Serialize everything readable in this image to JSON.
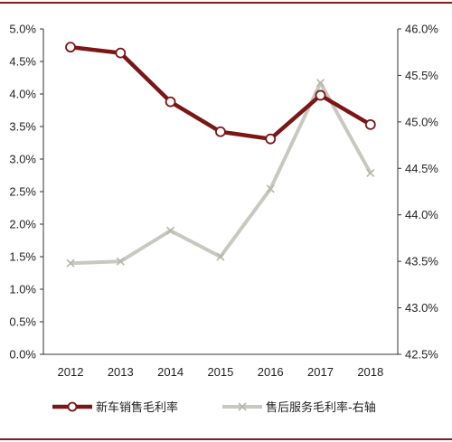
{
  "chart_data": {
    "type": "line",
    "categories": [
      "2012",
      "2013",
      "2014",
      "2015",
      "2016",
      "2017",
      "2018"
    ],
    "y_left": {
      "range": [
        0,
        5
      ],
      "ticks": [
        0,
        0.5,
        1,
        1.5,
        2,
        2.5,
        3,
        3.5,
        4,
        4.5,
        5
      ],
      "tick_labels": [
        "0.0%",
        "0.5%",
        "1.0%",
        "1.5%",
        "2.0%",
        "2.5%",
        "3.0%",
        "3.5%",
        "4.0%",
        "4.5%",
        "5.0%"
      ]
    },
    "y_right": {
      "range": [
        42.5,
        46
      ],
      "ticks": [
        42.5,
        43,
        43.5,
        44,
        44.5,
        45,
        45.5,
        46
      ],
      "tick_labels": [
        "42.5%",
        "43.0%",
        "43.5%",
        "44.0%",
        "44.5%",
        "45.0%",
        "45.5%",
        "46.0%"
      ]
    },
    "series": [
      {
        "name": "新车销售毛利率",
        "axis": "left",
        "values": [
          4.72,
          4.63,
          3.88,
          3.42,
          3.31,
          3.98,
          3.53
        ],
        "color": "#7b1616",
        "marker": "circle"
      },
      {
        "name": "售后服务毛利率-右轴",
        "axis": "right",
        "values": [
          43.48,
          43.5,
          43.83,
          43.55,
          44.28,
          45.42,
          44.45
        ],
        "color": "#c7c8bf",
        "marker": "x"
      }
    ],
    "grid": false,
    "legend": "bottom"
  }
}
